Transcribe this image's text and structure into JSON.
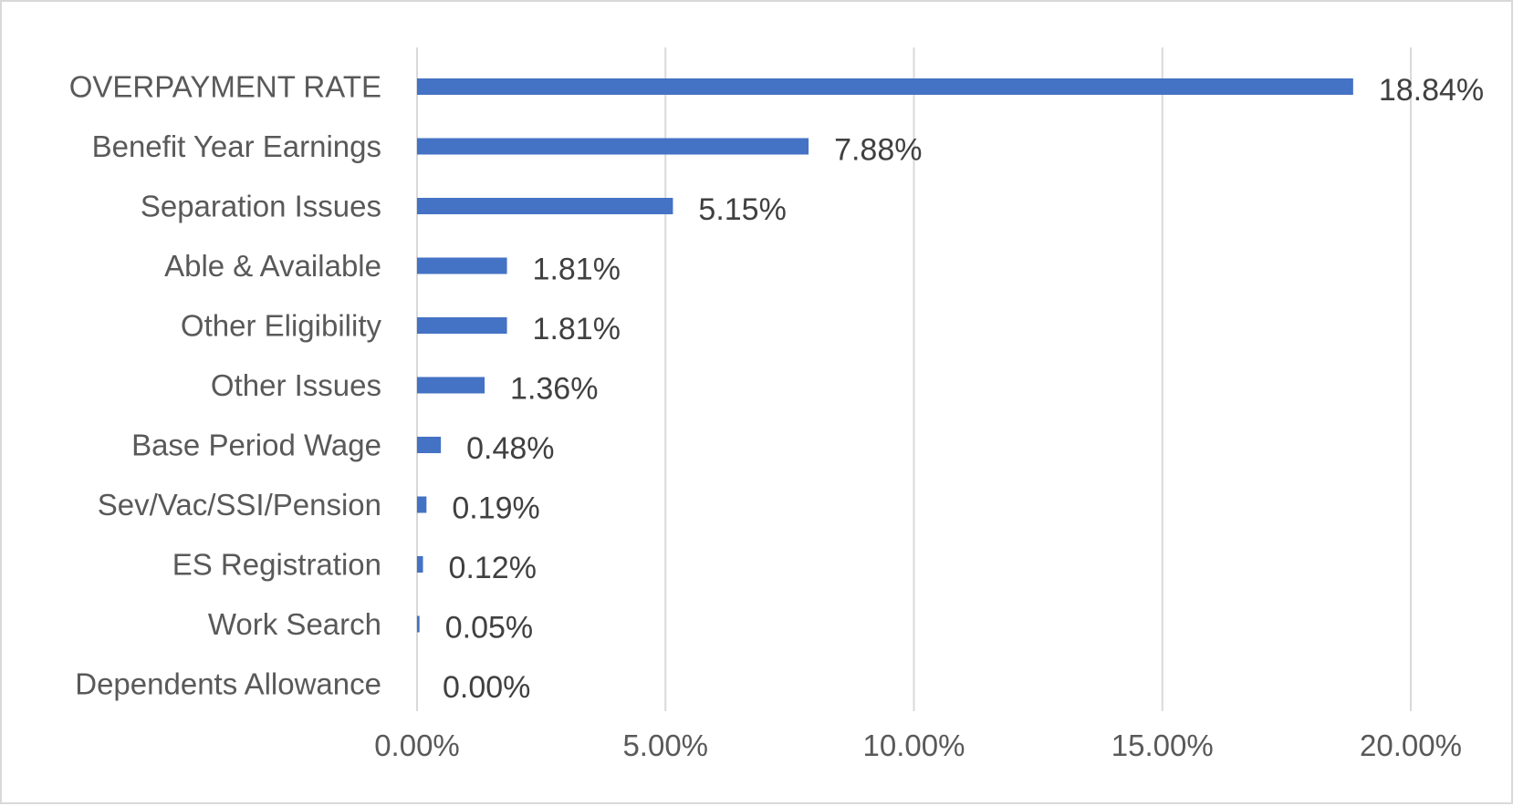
{
  "chart_data": {
    "type": "bar",
    "orientation": "horizontal",
    "categories": [
      "OVERPAYMENT RATE",
      "Benefit Year Earnings",
      "Separation Issues",
      "Able & Available",
      "Other Eligibility",
      "Other Issues",
      "Base Period Wage",
      "Sev/Vac/SSI/Pension",
      "ES Registration",
      "Work Search",
      "Dependents Allowance"
    ],
    "values": [
      18.84,
      7.88,
      5.15,
      1.81,
      1.81,
      1.36,
      0.48,
      0.19,
      0.12,
      0.05,
      0.0
    ],
    "value_labels": [
      "18.84%",
      "7.88%",
      "5.15%",
      "1.81%",
      "1.81%",
      "1.36%",
      "0.48%",
      "0.19%",
      "0.12%",
      "0.05%",
      "0.00%"
    ],
    "xlim": [
      0,
      20
    ],
    "xticks": [
      0,
      5,
      10,
      15,
      20
    ],
    "xtick_labels": [
      "0.00%",
      "5.00%",
      "10.00%",
      "15.00%",
      "20.00%"
    ],
    "title": "",
    "xlabel": "",
    "ylabel": "",
    "grid": "vertical",
    "legend": "none",
    "colors": {
      "bar": "#4472c4",
      "grid": "#d9d9d9",
      "text": "#595959"
    }
  }
}
